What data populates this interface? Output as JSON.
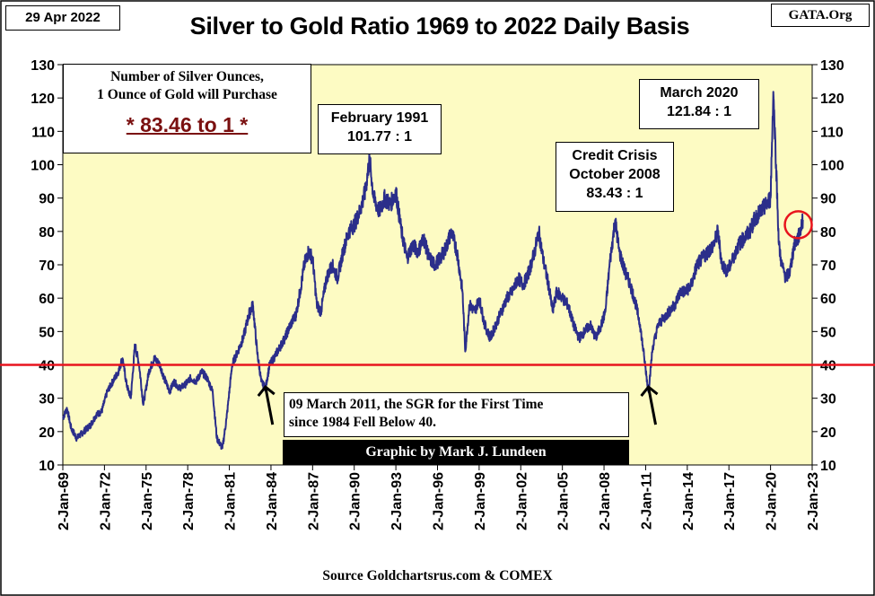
{
  "date_label": "29 Apr 2022",
  "site_label": "GATA.Org",
  "colors": {
    "plot_background": "#fdfbc3",
    "series": "#2b2e8a",
    "reference_line": "#e8141e",
    "highlight_circle": "#e8141e",
    "ratio_text": "#7a1010"
  },
  "ratio_box": {
    "line1": "Number of Silver Ounces,",
    "line2": "1 Ounce of Gold will Purchase",
    "value": "* 83.46 to 1 *"
  },
  "annotations": {
    "feb1991": {
      "line1": "February 1991",
      "line2": "101.77 : 1"
    },
    "oct2008": {
      "line1": "Credit Crisis",
      "line2": "October 2008",
      "line3": "83.43 : 1"
    },
    "mar2020": {
      "line1": "March 2020",
      "line2": "121.84 : 1"
    },
    "mar2011": {
      "line1": "09 March 2011, the SGR for the First Time",
      "line2": "since 1984 Fell Below 40."
    }
  },
  "credit": "Graphic by Mark J. Lundeen",
  "source": "Source Goldchartsrus.com & COMEX",
  "chart_data": {
    "type": "line",
    "title": "Silver to Gold Ratio 1969 to 2022 Daily Basis",
    "ylim": [
      10,
      130
    ],
    "yticks": [
      10,
      20,
      30,
      40,
      50,
      60,
      70,
      80,
      90,
      100,
      110,
      120,
      130
    ],
    "xlim": [
      1969.0,
      2023.0
    ],
    "xticks": [
      {
        "label": "2-Jan-69",
        "year": 1969
      },
      {
        "label": "2-Jan-72",
        "year": 1972
      },
      {
        "label": "2-Jan-75",
        "year": 1975
      },
      {
        "label": "2-Jan-78",
        "year": 1978
      },
      {
        "label": "2-Jan-81",
        "year": 1981
      },
      {
        "label": "2-Jan-84",
        "year": 1984
      },
      {
        "label": "2-Jan-87",
        "year": 1987
      },
      {
        "label": "2-Jan-90",
        "year": 1990
      },
      {
        "label": "2-Jan-93",
        "year": 1993
      },
      {
        "label": "2-Jan-96",
        "year": 1996
      },
      {
        "label": "2-Jan-99",
        "year": 1999
      },
      {
        "label": "2-Jan-02",
        "year": 2002
      },
      {
        "label": "2-Jan-05",
        "year": 2005
      },
      {
        "label": "2-Jan-08",
        "year": 2008
      },
      {
        "label": "2-Jan-11",
        "year": 2011
      },
      {
        "label": "2-Jan-14",
        "year": 2014
      },
      {
        "label": "2-Jan-17",
        "year": 2017
      },
      {
        "label": "2-Jan-20",
        "year": 2020
      },
      {
        "label": "2-Jan-23",
        "year": 2023
      }
    ],
    "reference_line": {
      "y": 40
    },
    "highlight": {
      "x": 2022.0,
      "y": 82
    },
    "arrows": [
      {
        "x": 1983.6,
        "y": 35
      },
      {
        "x": 2011.2,
        "y": 35
      }
    ],
    "grid": false,
    "legend": "none",
    "series": [
      {
        "points": [
          [
            1969.0,
            24
          ],
          [
            1969.3,
            27
          ],
          [
            1969.6,
            21
          ],
          [
            1970.0,
            18
          ],
          [
            1970.5,
            20
          ],
          [
            1971.0,
            22
          ],
          [
            1971.4,
            25
          ],
          [
            1971.8,
            26
          ],
          [
            1972.2,
            32
          ],
          [
            1972.6,
            35
          ],
          [
            1973.0,
            38
          ],
          [
            1973.3,
            42
          ],
          [
            1973.6,
            34
          ],
          [
            1973.9,
            30
          ],
          [
            1974.2,
            46
          ],
          [
            1974.5,
            40
          ],
          [
            1974.8,
            28
          ],
          [
            1975.2,
            38
          ],
          [
            1975.6,
            42
          ],
          [
            1976.0,
            40
          ],
          [
            1976.3,
            36
          ],
          [
            1976.7,
            32
          ],
          [
            1977.0,
            35
          ],
          [
            1977.4,
            33
          ],
          [
            1977.8,
            34
          ],
          [
            1978.2,
            36
          ],
          [
            1978.6,
            35
          ],
          [
            1979.0,
            38
          ],
          [
            1979.4,
            36
          ],
          [
            1979.8,
            32
          ],
          [
            1980.1,
            18
          ],
          [
            1980.5,
            15
          ],
          [
            1980.8,
            24
          ],
          [
            1981.2,
            40
          ],
          [
            1981.6,
            44
          ],
          [
            1982.0,
            48
          ],
          [
            1982.4,
            55
          ],
          [
            1982.7,
            58
          ],
          [
            1983.0,
            44
          ],
          [
            1983.3,
            35
          ],
          [
            1983.6,
            33
          ],
          [
            1983.9,
            40
          ],
          [
            1984.2,
            42
          ],
          [
            1984.6,
            45
          ],
          [
            1985.0,
            48
          ],
          [
            1985.4,
            52
          ],
          [
            1985.8,
            55
          ],
          [
            1986.1,
            62
          ],
          [
            1986.4,
            70
          ],
          [
            1986.7,
            74
          ],
          [
            1987.0,
            72
          ],
          [
            1987.3,
            58
          ],
          [
            1987.6,
            56
          ],
          [
            1988.0,
            66
          ],
          [
            1988.4,
            70
          ],
          [
            1988.8,
            66
          ],
          [
            1989.2,
            74
          ],
          [
            1989.6,
            80
          ],
          [
            1990.0,
            82
          ],
          [
            1990.4,
            86
          ],
          [
            1990.8,
            92
          ],
          [
            1991.1,
            101.77
          ],
          [
            1991.4,
            90
          ],
          [
            1991.8,
            86
          ],
          [
            1992.2,
            90
          ],
          [
            1992.6,
            88
          ],
          [
            1993.0,
            92
          ],
          [
            1993.4,
            80
          ],
          [
            1993.8,
            72
          ],
          [
            1994.2,
            76
          ],
          [
            1994.6,
            74
          ],
          [
            1995.0,
            78
          ],
          [
            1995.4,
            72
          ],
          [
            1995.8,
            70
          ],
          [
            1996.2,
            72
          ],
          [
            1996.6,
            75
          ],
          [
            1997.0,
            80
          ],
          [
            1997.4,
            74
          ],
          [
            1997.8,
            62
          ],
          [
            1998.0,
            44
          ],
          [
            1998.3,
            58
          ],
          [
            1998.7,
            56
          ],
          [
            1999.0,
            60
          ],
          [
            1999.4,
            52
          ],
          [
            1999.8,
            48
          ],
          [
            2000.2,
            52
          ],
          [
            2000.6,
            56
          ],
          [
            2001.0,
            60
          ],
          [
            2001.4,
            62
          ],
          [
            2001.8,
            66
          ],
          [
            2002.2,
            64
          ],
          [
            2002.6,
            68
          ],
          [
            2003.0,
            74
          ],
          [
            2003.3,
            80
          ],
          [
            2003.6,
            72
          ],
          [
            2004.0,
            64
          ],
          [
            2004.3,
            56
          ],
          [
            2004.6,
            62
          ],
          [
            2005.0,
            60
          ],
          [
            2005.4,
            58
          ],
          [
            2005.8,
            52
          ],
          [
            2006.2,
            48
          ],
          [
            2006.6,
            50
          ],
          [
            2007.0,
            52
          ],
          [
            2007.4,
            48
          ],
          [
            2007.8,
            52
          ],
          [
            2008.1,
            56
          ],
          [
            2008.4,
            70
          ],
          [
            2008.8,
            83.43
          ],
          [
            2009.1,
            74
          ],
          [
            2009.5,
            68
          ],
          [
            2009.9,
            64
          ],
          [
            2010.3,
            58
          ],
          [
            2010.6,
            52
          ],
          [
            2010.9,
            42
          ],
          [
            2011.2,
            32
          ],
          [
            2011.5,
            45
          ],
          [
            2011.9,
            52
          ],
          [
            2012.3,
            54
          ],
          [
            2012.7,
            56
          ],
          [
            2013.1,
            58
          ],
          [
            2013.5,
            62
          ],
          [
            2013.9,
            62
          ],
          [
            2014.3,
            64
          ],
          [
            2014.7,
            70
          ],
          [
            2015.1,
            72
          ],
          [
            2015.5,
            74
          ],
          [
            2015.9,
            76
          ],
          [
            2016.2,
            80
          ],
          [
            2016.5,
            70
          ],
          [
            2016.9,
            68
          ],
          [
            2017.3,
            72
          ],
          [
            2017.7,
            76
          ],
          [
            2018.1,
            78
          ],
          [
            2018.5,
            80
          ],
          [
            2018.9,
            84
          ],
          [
            2019.3,
            86
          ],
          [
            2019.7,
            88
          ],
          [
            2020.0,
            90
          ],
          [
            2020.2,
            121.84
          ],
          [
            2020.4,
            100
          ],
          [
            2020.6,
            76
          ],
          [
            2020.8,
            70
          ],
          [
            2021.1,
            66
          ],
          [
            2021.4,
            68
          ],
          [
            2021.7,
            76
          ],
          [
            2022.0,
            78
          ],
          [
            2022.33,
            83.46
          ]
        ]
      }
    ]
  }
}
